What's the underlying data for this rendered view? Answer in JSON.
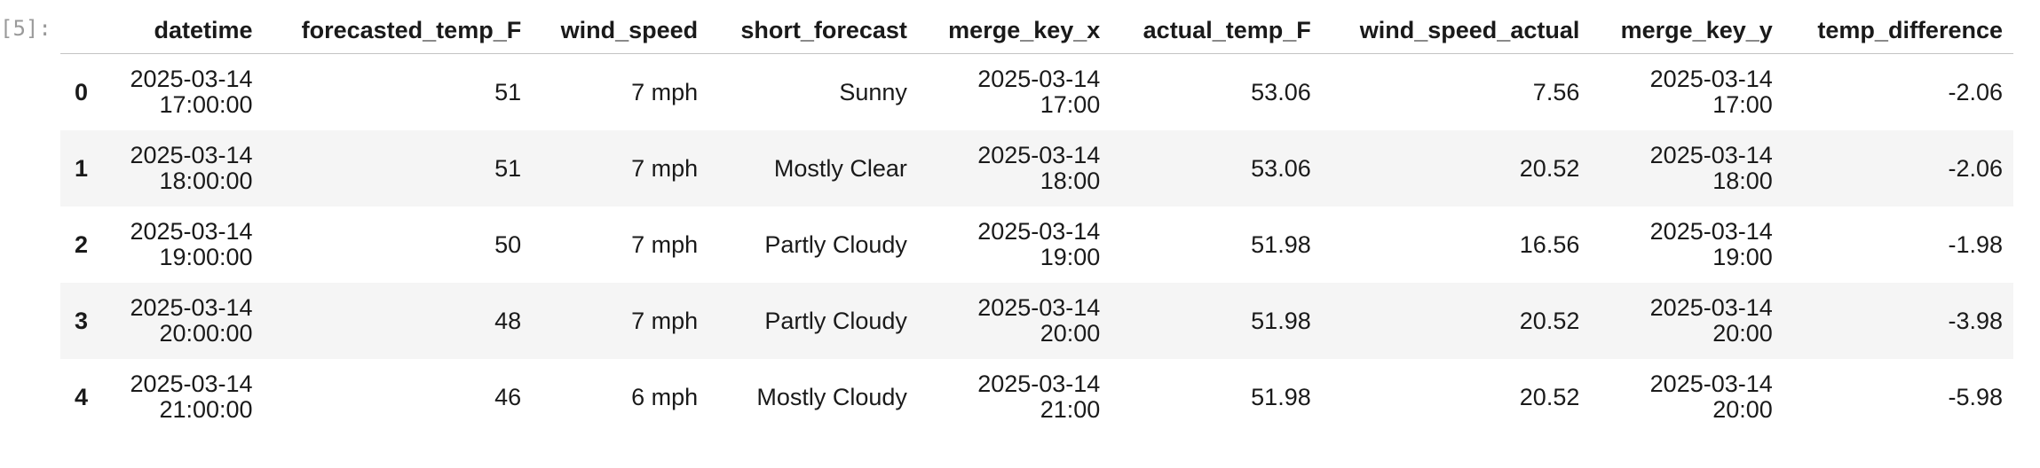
{
  "cell": {
    "prompt": "[5]:"
  },
  "table": {
    "index_header": "",
    "columns": [
      "datetime",
      "forecasted_temp_F",
      "wind_speed",
      "short_forecast",
      "merge_key_x",
      "actual_temp_F",
      "wind_speed_actual",
      "merge_key_y",
      "temp_difference"
    ],
    "rows": [
      {
        "index": "0",
        "datetime_date": "2025-03-14",
        "datetime_time": "17:00:00",
        "forecasted_temp_F": "51",
        "wind_speed": "7 mph",
        "short_forecast": "Sunny",
        "merge_key_x_date": "2025-03-14",
        "merge_key_x_time": "17:00",
        "actual_temp_F": "53.06",
        "wind_speed_actual": "7.56",
        "merge_key_y_date": "2025-03-14",
        "merge_key_y_time": "17:00",
        "temp_difference": "-2.06"
      },
      {
        "index": "1",
        "datetime_date": "2025-03-14",
        "datetime_time": "18:00:00",
        "forecasted_temp_F": "51",
        "wind_speed": "7 mph",
        "short_forecast": "Mostly Clear",
        "merge_key_x_date": "2025-03-14",
        "merge_key_x_time": "18:00",
        "actual_temp_F": "53.06",
        "wind_speed_actual": "20.52",
        "merge_key_y_date": "2025-03-14",
        "merge_key_y_time": "18:00",
        "temp_difference": "-2.06"
      },
      {
        "index": "2",
        "datetime_date": "2025-03-14",
        "datetime_time": "19:00:00",
        "forecasted_temp_F": "50",
        "wind_speed": "7 mph",
        "short_forecast": "Partly Cloudy",
        "merge_key_x_date": "2025-03-14",
        "merge_key_x_time": "19:00",
        "actual_temp_F": "51.98",
        "wind_speed_actual": "16.56",
        "merge_key_y_date": "2025-03-14",
        "merge_key_y_time": "19:00",
        "temp_difference": "-1.98"
      },
      {
        "index": "3",
        "datetime_date": "2025-03-14",
        "datetime_time": "20:00:00",
        "forecasted_temp_F": "48",
        "wind_speed": "7 mph",
        "short_forecast": "Partly Cloudy",
        "merge_key_x_date": "2025-03-14",
        "merge_key_x_time": "20:00",
        "actual_temp_F": "51.98",
        "wind_speed_actual": "20.52",
        "merge_key_y_date": "2025-03-14",
        "merge_key_y_time": "20:00",
        "temp_difference": "-3.98"
      },
      {
        "index": "4",
        "datetime_date": "2025-03-14",
        "datetime_time": "21:00:00",
        "forecasted_temp_F": "46",
        "wind_speed": "6 mph",
        "short_forecast": "Mostly Cloudy",
        "merge_key_x_date": "2025-03-14",
        "merge_key_x_time": "21:00",
        "actual_temp_F": "51.98",
        "wind_speed_actual": "20.52",
        "merge_key_y_date": "2025-03-14",
        "merge_key_y_time": "20:00",
        "temp_difference": "-5.98"
      }
    ]
  }
}
